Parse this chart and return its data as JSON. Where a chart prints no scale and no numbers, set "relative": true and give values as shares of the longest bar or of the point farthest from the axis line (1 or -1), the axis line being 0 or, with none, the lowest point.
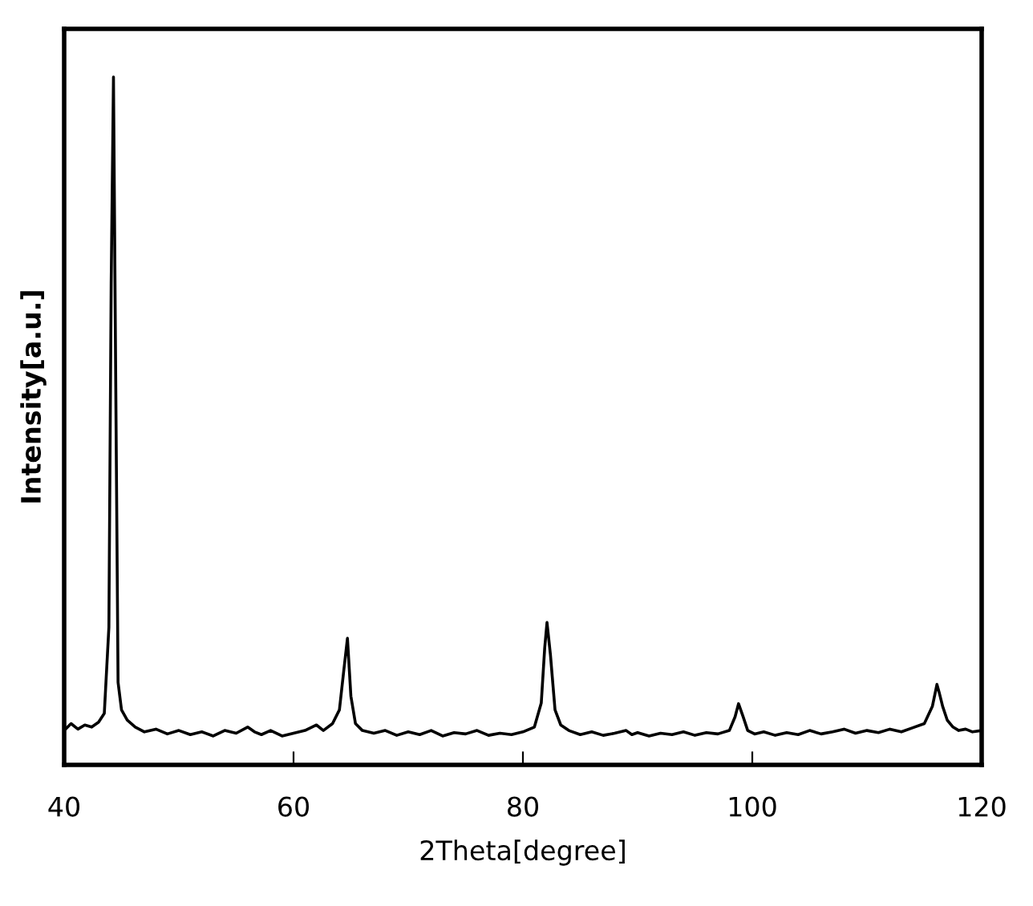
{
  "chart_data": {
    "type": "line",
    "relative": true,
    "xlabel": "2Theta[degree]",
    "ylabel": "Intensity[a.u.]",
    "xlim": [
      40,
      120
    ],
    "xticks": [
      40,
      60,
      80,
      100,
      120
    ],
    "tick_labels": "x",
    "grid": false,
    "legend": false,
    "marker": "none",
    "line_style": "solid",
    "series": [
      {
        "color": "#000000",
        "x": [
          40,
          40.6,
          41.2,
          41.8,
          42.4,
          43.0,
          43.5,
          43.9,
          44.1,
          44.3,
          44.5,
          44.7,
          45.0,
          45.5,
          46.2,
          47.0,
          48.0,
          49.0,
          50.0,
          51.0,
          52.0,
          53.0,
          54.0,
          55.0,
          56.0,
          56.6,
          57.2,
          58.0,
          59.0,
          60.0,
          61.0,
          62.0,
          62.6,
          63.4,
          64.0,
          64.4,
          64.7,
          65.0,
          65.4,
          66.0,
          67.0,
          68.0,
          69.0,
          70.0,
          71.0,
          72.0,
          73.0,
          74.0,
          75.0,
          76.0,
          77.0,
          78.0,
          79.0,
          80.0,
          81.0,
          81.6,
          81.9,
          82.1,
          82.4,
          82.8,
          83.3,
          84.0,
          85.0,
          86.0,
          87.0,
          88.0,
          89.0,
          89.5,
          90.0,
          91.0,
          92.0,
          93.0,
          94.0,
          95.0,
          96.0,
          97.0,
          98.0,
          98.5,
          98.8,
          99.2,
          99.6,
          100.2,
          101.0,
          102.0,
          103.0,
          104.0,
          105.0,
          106.0,
          107.0,
          108.0,
          109.0,
          110.0,
          111.0,
          112.0,
          113.0,
          114.0,
          115.0,
          115.7,
          116.1,
          116.3,
          116.6,
          117.0,
          117.5,
          118.0,
          118.6,
          119.2,
          120.0
        ],
        "values": [
          0.05,
          0.06,
          0.052,
          0.058,
          0.055,
          0.062,
          0.075,
          0.2,
          0.7,
          1,
          0.55,
          0.12,
          0.08,
          0.065,
          0.055,
          0.048,
          0.052,
          0.045,
          0.05,
          0.044,
          0.048,
          0.042,
          0.05,
          0.046,
          0.055,
          0.048,
          0.044,
          0.05,
          0.042,
          0.046,
          0.05,
          0.058,
          0.05,
          0.06,
          0.08,
          0.14,
          0.184,
          0.1,
          0.06,
          0.05,
          0.046,
          0.05,
          0.043,
          0.048,
          0.044,
          0.05,
          0.042,
          0.047,
          0.045,
          0.05,
          0.043,
          0.046,
          0.044,
          0.048,
          0.055,
          0.09,
          0.17,
          0.207,
          0.16,
          0.08,
          0.058,
          0.05,
          0.044,
          0.048,
          0.043,
          0.046,
          0.05,
          0.044,
          0.047,
          0.042,
          0.046,
          0.044,
          0.048,
          0.043,
          0.047,
          0.045,
          0.05,
          0.07,
          0.089,
          0.07,
          0.05,
          0.045,
          0.048,
          0.043,
          0.047,
          0.044,
          0.05,
          0.045,
          0.048,
          0.052,
          0.046,
          0.05,
          0.047,
          0.052,
          0.048,
          0.054,
          0.06,
          0.085,
          0.117,
          0.105,
          0.085,
          0.065,
          0.055,
          0.05,
          0.052,
          0.048,
          0.05
        ]
      }
    ]
  }
}
